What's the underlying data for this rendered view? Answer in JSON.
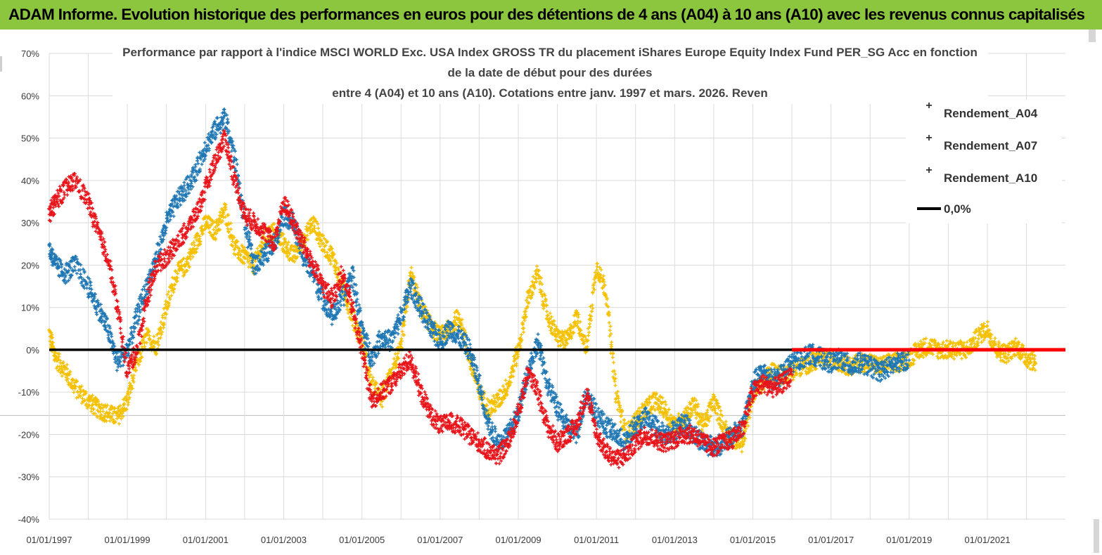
{
  "header": {
    "title": "ADAM Informe. Evolution historique des performances en euros pour des détentions de 4 ans (A04) à 10 ans (A10) avec les revenus connus capitalisés"
  },
  "chart_data": {
    "type": "scatter",
    "title_lines": [
      "Performance par rapport à l'indice MSCI WORLD Exc. USA Index GROSS TR  du placement iShares Europe Equity Index Fund PER_SG Acc en fonction",
      "de la date de début pour des durées",
      "entre 4 (A04) et 10 ans (A10). Cotations entre janv. 1997 et mars. 2026. Reven"
    ],
    "xlim": [
      "1997-01-01",
      "2022-12-31"
    ],
    "ylim": [
      -40,
      70
    ],
    "x_tick_labels": [
      "01/01/1997",
      "01/01/1999",
      "01/01/2001",
      "01/01/2003",
      "01/01/2005",
      "01/01/2007",
      "01/01/2009",
      "01/01/2011",
      "01/01/2013",
      "01/01/2015",
      "01/01/2017",
      "01/01/2019",
      "01/01/2021"
    ],
    "y_tick_labels": [
      "70%",
      "60%",
      "50%",
      "40%",
      "30%",
      "20%",
      "10%",
      "0%",
      "-10%",
      "-20%",
      "-30%",
      "-40%"
    ],
    "y_ticks": [
      70,
      60,
      50,
      40,
      30,
      20,
      10,
      0,
      -10,
      -20,
      -30,
      -40
    ],
    "grid": true,
    "legend_position": "top-right",
    "series": [
      {
        "name": "Rendement_A04",
        "color": "#f5c000",
        "marker": "plus",
        "x": [
          "1997-01-01",
          "1997-03-01",
          "1997-06-01",
          "1997-09-01",
          "1998-01-01",
          "1998-04-01",
          "1998-07-01",
          "1998-10-01",
          "1999-01-01",
          "1999-04-01",
          "1999-07-01",
          "1999-10-01",
          "2000-01-01",
          "2000-04-01",
          "2000-07-01",
          "2000-10-01",
          "2001-01-01",
          "2001-04-01",
          "2001-07-01",
          "2001-10-01",
          "2002-01-01",
          "2002-04-01",
          "2002-07-01",
          "2002-10-01",
          "2003-01-01",
          "2003-04-01",
          "2003-07-01",
          "2003-10-01",
          "2004-01-01",
          "2004-04-01",
          "2004-07-01",
          "2004-10-01",
          "2005-01-01",
          "2005-04-01",
          "2005-07-01",
          "2005-10-01",
          "2006-01-01",
          "2006-04-01",
          "2006-07-01",
          "2006-10-01",
          "2007-01-01",
          "2007-04-01",
          "2007-07-01",
          "2007-10-01",
          "2008-01-01",
          "2008-04-01",
          "2008-07-01",
          "2008-10-01",
          "2009-01-01",
          "2009-04-01",
          "2009-07-01",
          "2009-10-01",
          "2010-01-01",
          "2010-04-01",
          "2010-07-01",
          "2010-10-01",
          "2011-01-01",
          "2011-04-01",
          "2011-07-01",
          "2011-10-01",
          "2012-01-01",
          "2012-04-01",
          "2012-07-01",
          "2012-10-01",
          "2013-01-01",
          "2013-04-01",
          "2013-07-01",
          "2013-10-01",
          "2014-01-01",
          "2014-04-01",
          "2014-07-01",
          "2014-10-01",
          "2015-01-01",
          "2015-04-01",
          "2015-07-01",
          "2015-10-01",
          "2016-01-01",
          "2016-04-01",
          "2016-07-01",
          "2016-10-01",
          "2017-01-01",
          "2017-04-01",
          "2017-07-01",
          "2017-10-01",
          "2018-01-01",
          "2018-04-01",
          "2018-07-01",
          "2018-10-01",
          "2019-01-01",
          "2019-04-01",
          "2019-07-01",
          "2019-10-01",
          "2020-01-01",
          "2020-04-01",
          "2020-07-01",
          "2020-10-01",
          "2021-01-01",
          "2021-04-01",
          "2021-07-01",
          "2021-10-01",
          "2022-01-01",
          "2022-04-01"
        ],
        "y": [
          4,
          -2,
          -5,
          -9,
          -12,
          -14,
          -15,
          -16,
          -12,
          -3,
          3,
          1,
          10,
          18,
          20,
          25,
          30,
          28,
          33,
          24,
          22,
          20,
          26,
          28,
          25,
          22,
          26,
          30,
          25,
          22,
          15,
          8,
          2,
          -8,
          -12,
          -5,
          0,
          18,
          10,
          6,
          3,
          5,
          8,
          -2,
          -10,
          -14,
          -12,
          -8,
          0,
          12,
          18,
          8,
          3,
          2,
          8,
          0,
          20,
          14,
          -10,
          -20,
          -17,
          -14,
          -12,
          -14,
          -18,
          -16,
          -13,
          -18,
          -12,
          -18,
          -21,
          -22,
          -10,
          -8,
          -5,
          -6,
          -5,
          -4,
          -3,
          -2,
          -2,
          -3,
          -4,
          -3,
          -3,
          -4,
          -3,
          -3,
          -2,
          0,
          1,
          0,
          0,
          0,
          0,
          3,
          5,
          0,
          -1,
          1,
          -2,
          -3
        ],
        "spread": 2.2
      },
      {
        "name": "Rendement_A07",
        "color": "#1f77b4",
        "marker": "plus",
        "x": [
          "1997-01-01",
          "1997-03-01",
          "1997-06-01",
          "1997-09-01",
          "1998-01-01",
          "1998-04-01",
          "1998-07-01",
          "1998-10-01",
          "1999-01-01",
          "1999-04-01",
          "1999-07-01",
          "1999-10-01",
          "2000-01-01",
          "2000-04-01",
          "2000-07-01",
          "2000-10-01",
          "2001-01-01",
          "2001-04-01",
          "2001-07-01",
          "2001-10-01",
          "2002-01-01",
          "2002-04-01",
          "2002-07-01",
          "2002-10-01",
          "2003-01-01",
          "2003-04-01",
          "2003-07-01",
          "2003-10-01",
          "2004-01-01",
          "2004-04-01",
          "2004-07-01",
          "2004-10-01",
          "2005-01-01",
          "2005-04-01",
          "2005-07-01",
          "2005-10-01",
          "2006-01-01",
          "2006-04-01",
          "2006-07-01",
          "2006-10-01",
          "2007-01-01",
          "2007-04-01",
          "2007-07-01",
          "2007-10-01",
          "2008-01-01",
          "2008-04-01",
          "2008-07-01",
          "2008-10-01",
          "2009-01-01",
          "2009-04-01",
          "2009-07-01",
          "2009-10-01",
          "2010-01-01",
          "2010-04-01",
          "2010-07-01",
          "2010-10-01",
          "2011-01-01",
          "2011-04-01",
          "2011-07-01",
          "2011-10-01",
          "2012-01-01",
          "2012-04-01",
          "2012-07-01",
          "2012-10-01",
          "2013-01-01",
          "2013-04-01",
          "2013-07-01",
          "2013-10-01",
          "2014-01-01",
          "2014-04-01",
          "2014-07-01",
          "2014-10-01",
          "2015-01-01",
          "2015-04-01",
          "2015-07-01",
          "2015-10-01",
          "2016-01-01",
          "2016-04-01",
          "2016-07-01",
          "2016-10-01",
          "2017-01-01",
          "2017-04-01",
          "2017-07-01",
          "2017-10-01",
          "2018-01-01",
          "2018-04-01",
          "2018-07-01",
          "2018-10-01",
          "2019-01-01"
        ],
        "y": [
          24,
          20,
          18,
          20,
          15,
          10,
          5,
          -3,
          0,
          8,
          15,
          22,
          30,
          35,
          38,
          42,
          48,
          52,
          55,
          45,
          30,
          20,
          22,
          25,
          32,
          30,
          22,
          18,
          12,
          8,
          12,
          18,
          5,
          -2,
          3,
          2,
          8,
          15,
          10,
          5,
          2,
          5,
          3,
          0,
          -8,
          -18,
          -22,
          -20,
          -15,
          -5,
          2,
          -8,
          -14,
          -18,
          -20,
          -10,
          -15,
          -18,
          -20,
          -22,
          -18,
          -16,
          -18,
          -20,
          -19,
          -17,
          -20,
          -22,
          -23,
          -22,
          -20,
          -18,
          -8,
          -5,
          -7,
          -6,
          -3,
          -2,
          -1,
          -2,
          -3,
          -2,
          -4,
          -3,
          -4,
          -5,
          -4,
          -3,
          -2
        ],
        "spread": 2.4
      },
      {
        "name": "Rendement_A10",
        "color": "#e8141a",
        "marker": "plus",
        "x": [
          "1997-01-01",
          "1997-03-01",
          "1997-06-01",
          "1997-09-01",
          "1998-01-01",
          "1998-04-01",
          "1998-07-01",
          "1998-10-01",
          "1999-01-01",
          "1999-04-01",
          "1999-07-01",
          "1999-10-01",
          "2000-01-01",
          "2000-04-01",
          "2000-07-01",
          "2000-10-01",
          "2001-01-01",
          "2001-04-01",
          "2001-07-01",
          "2001-10-01",
          "2002-01-01",
          "2002-04-01",
          "2002-07-01",
          "2002-10-01",
          "2003-01-01",
          "2003-04-01",
          "2003-07-01",
          "2003-10-01",
          "2004-01-01",
          "2004-04-01",
          "2004-07-01",
          "2004-10-01",
          "2005-01-01",
          "2005-04-01",
          "2005-07-01",
          "2005-10-01",
          "2006-01-01",
          "2006-04-01",
          "2006-07-01",
          "2006-10-01",
          "2007-01-01",
          "2007-04-01",
          "2007-07-01",
          "2007-10-01",
          "2008-01-01",
          "2008-04-01",
          "2008-07-01",
          "2008-10-01",
          "2009-01-01",
          "2009-04-01",
          "2009-07-01",
          "2009-10-01",
          "2010-01-01",
          "2010-04-01",
          "2010-07-01",
          "2010-10-01",
          "2011-01-01",
          "2011-04-01",
          "2011-07-01",
          "2011-10-01",
          "2012-01-01",
          "2012-04-01",
          "2012-07-01",
          "2012-10-01",
          "2013-01-01",
          "2013-04-01",
          "2013-07-01",
          "2013-10-01",
          "2014-01-01",
          "2014-04-01",
          "2014-07-01",
          "2014-10-01",
          "2015-01-01",
          "2015-04-01",
          "2015-07-01",
          "2015-10-01",
          "2016-01-01"
        ],
        "y": [
          32,
          35,
          38,
          40,
          35,
          28,
          22,
          10,
          -5,
          0,
          12,
          20,
          22,
          25,
          28,
          32,
          38,
          45,
          50,
          40,
          32,
          30,
          28,
          25,
          35,
          30,
          25,
          20,
          15,
          12,
          18,
          10,
          0,
          -12,
          -10,
          -8,
          -5,
          -2,
          -10,
          -15,
          -18,
          -17,
          -18,
          -20,
          -22,
          -24,
          -25,
          -22,
          -15,
          -5,
          -10,
          -18,
          -22,
          -20,
          -18,
          -10,
          -20,
          -24,
          -26,
          -25,
          -22,
          -20,
          -21,
          -22,
          -21,
          -20,
          -20,
          -22,
          -23,
          -22,
          -21,
          -18,
          -10,
          -8,
          -9,
          -8,
          -6
        ],
        "spread": 2.2
      },
      {
        "name": "0,0%",
        "color": "#000000",
        "marker": "line",
        "y_constant": 0
      }
    ],
    "overlay_red_flat": {
      "from": "2016-01-01",
      "to": "2022-12-31",
      "y": 0,
      "color": "#ff0000"
    }
  }
}
